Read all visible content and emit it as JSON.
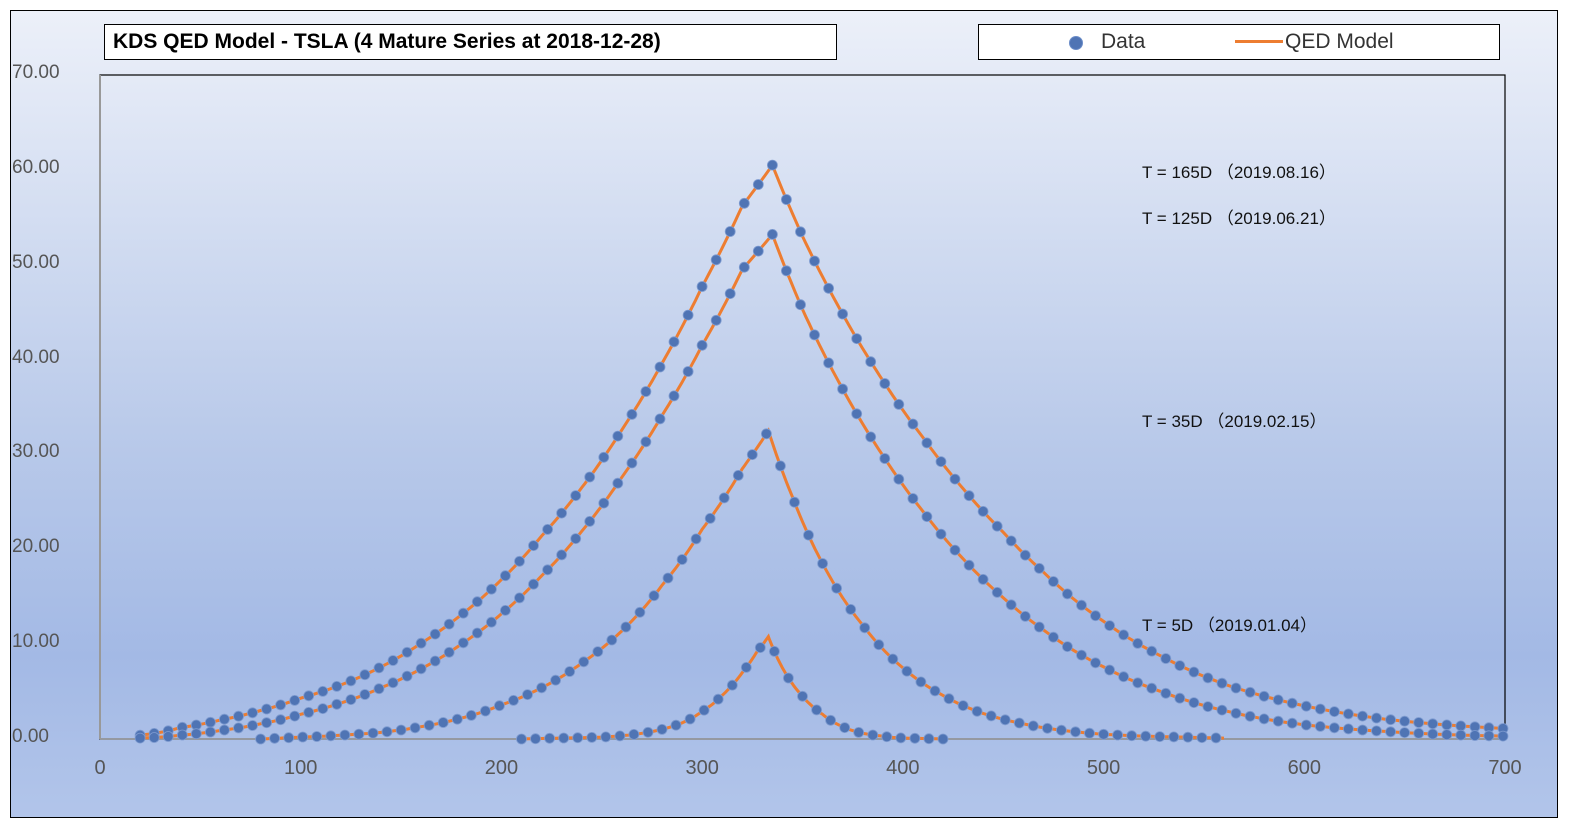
{
  "chart_data": {
    "type": "scatter",
    "title": "KDS QED Model - TSLA (4 Mature Series at 2018-12-28)",
    "xlabel": "",
    "ylabel": "",
    "xlim": [
      0,
      700
    ],
    "ylim": [
      0,
      70
    ],
    "x_ticks": [
      "0",
      "100",
      "200",
      "300",
      "400",
      "500",
      "600",
      "700"
    ],
    "y_ticks": [
      "0.00",
      "10.00",
      "20.00",
      "30.00",
      "40.00",
      "50.00",
      "60.00",
      "70.00"
    ],
    "legend": {
      "position": "top-right",
      "entries": [
        "Data",
        "QED Model"
      ]
    },
    "colors": {
      "data": "#4f74b4",
      "model": "#ed7d31"
    },
    "grid": false,
    "series": [
      {
        "annotation": "T = 165D （2019.08.16）",
        "peak": [
          335,
          60.5
        ],
        "x": [
          20,
          40,
          60,
          80,
          100,
          120,
          140,
          160,
          180,
          200,
          220,
          240,
          260,
          280,
          300,
          320,
          335,
          350,
          370,
          390,
          410,
          430,
          450,
          470,
          500,
          530,
          560,
          600,
          640,
          670,
          700
        ],
        "y": [
          0.4,
          1.2,
          2.0,
          3.0,
          4.3,
          5.7,
          7.6,
          10.1,
          13.1,
          16.8,
          21.4,
          26.5,
          32.6,
          39.6,
          47.7,
          56.2,
          60.5,
          53.0,
          44.8,
          37.8,
          31.8,
          26.4,
          21.8,
          17.6,
          12.4,
          8.6,
          5.8,
          3.5,
          2.1,
          1.5,
          1.1
        ]
      },
      {
        "annotation": "T = 125D （2019.06.21）",
        "peak": [
          335,
          53.2
        ],
        "x": [
          20,
          40,
          60,
          80,
          100,
          120,
          140,
          160,
          180,
          200,
          220,
          240,
          260,
          280,
          300,
          320,
          335,
          350,
          370,
          390,
          410,
          430,
          450,
          470,
          500,
          530,
          560,
          600,
          640,
          680,
          700
        ],
        "y": [
          0.1,
          0.4,
          0.9,
          1.6,
          2.6,
          3.8,
          5.4,
          7.4,
          10.0,
          13.2,
          17.2,
          21.9,
          27.6,
          34.1,
          41.5,
          49.5,
          53.2,
          45.3,
          36.9,
          29.9,
          24.0,
          19.0,
          14.9,
          11.5,
          7.6,
          4.9,
          3.0,
          1.5,
          0.8,
          0.4,
          0.3
        ]
      },
      {
        "annotation": "T = 35D （2019.02.15）",
        "peak": [
          333,
          32.5
        ],
        "x": [
          80,
          100,
          120,
          140,
          160,
          180,
          200,
          220,
          240,
          260,
          280,
          300,
          320,
          333,
          345,
          360,
          380,
          400,
          420,
          440,
          460,
          480,
          500,
          520,
          540,
          560
        ],
        "y": [
          0.0,
          0.2,
          0.4,
          0.7,
          1.3,
          2.2,
          3.6,
          5.4,
          8.0,
          11.4,
          16.2,
          22.1,
          28.5,
          32.5,
          25.5,
          18.5,
          12.0,
          7.5,
          4.6,
          2.7,
          1.6,
          0.9,
          0.5,
          0.3,
          0.2,
          0.1
        ]
      },
      {
        "annotation": "T = 5D （2019.01.04）",
        "peak": [
          333,
          10.8
        ],
        "x": [
          210,
          230,
          250,
          270,
          290,
          300,
          310,
          320,
          327,
          333,
          340,
          350,
          360,
          370,
          380,
          390,
          400,
          420
        ],
        "y": [
          0.0,
          0.1,
          0.2,
          0.6,
          1.7,
          2.9,
          4.6,
          7.0,
          9.1,
          10.8,
          7.5,
          4.5,
          2.6,
          1.3,
          0.6,
          0.3,
          0.1,
          0.0
        ]
      }
    ]
  }
}
